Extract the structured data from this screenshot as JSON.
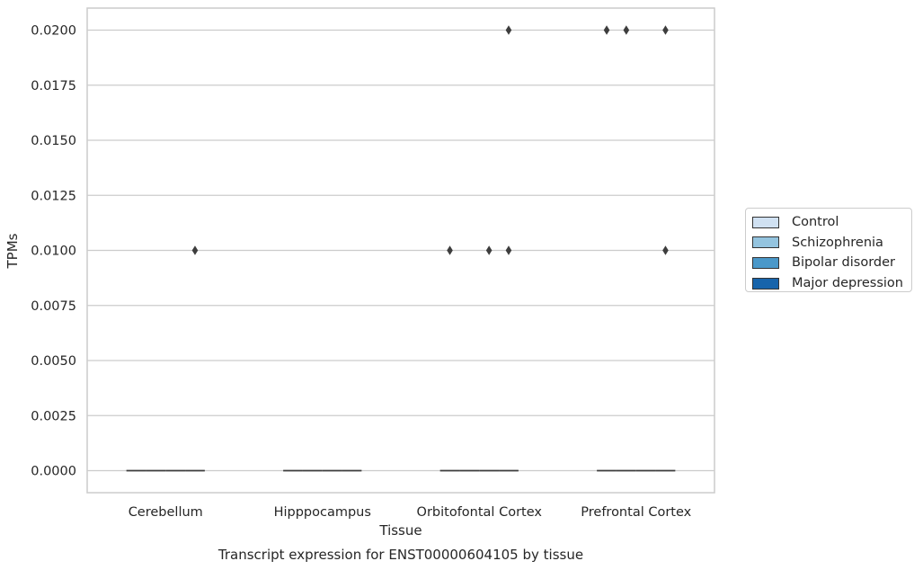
{
  "chart_data": {
    "type": "box",
    "title": "Transcript expression for ENST00000604105 by tissue",
    "xlabel": "Tissue",
    "ylabel": "TPMs",
    "ylim": [
      -0.001,
      0.021
    ],
    "yticks": [
      "0.0000",
      "0.0025",
      "0.0050",
      "0.0075",
      "0.0100",
      "0.0125",
      "0.0150",
      "0.0175",
      "0.0200"
    ],
    "ytick_values": [
      0,
      0.0025,
      0.005,
      0.0075,
      0.01,
      0.0125,
      0.015,
      0.0175,
      0.02
    ],
    "categories": [
      "Cerebellum",
      "Hipppocampus",
      "Orbitofontal Cortex",
      "Prefrontal Cortex"
    ],
    "grid": "horizontal",
    "legend_position": "right",
    "series": [
      {
        "name": "Control",
        "color": "#d0e1f2",
        "medians": [
          0,
          0,
          0,
          0
        ],
        "outliers": [
          [],
          [],
          [
            0.01
          ],
          [
            0.02
          ]
        ]
      },
      {
        "name": "Schizophrenia",
        "color": "#94c4df",
        "medians": [
          0,
          0,
          0,
          0
        ],
        "outliers": [
          [],
          [],
          [],
          [
            0.02
          ]
        ]
      },
      {
        "name": "Bipolar disorder",
        "color": "#4a98c9",
        "medians": [
          0,
          0,
          0,
          0
        ],
        "outliers": [
          [],
          [],
          [
            0.01
          ],
          []
        ]
      },
      {
        "name": "Major depression",
        "color": "#1764ab",
        "medians": [
          0,
          0,
          0,
          0
        ],
        "outliers": [
          [
            0.01
          ],
          [],
          [
            0.01,
            0.02
          ],
          [
            0.01,
            0.02
          ]
        ]
      }
    ]
  }
}
